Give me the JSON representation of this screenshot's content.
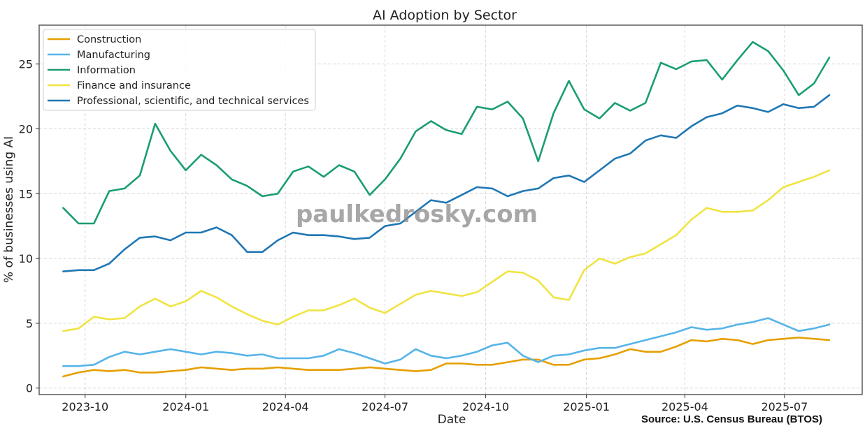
{
  "chart_data": {
    "type": "line",
    "title": "AI Adoption by Sector",
    "xlabel": "Date",
    "ylabel": "% of businesses using AI",
    "ylim": [
      -0.5,
      28
    ],
    "xlim": [
      "2023-08-20",
      "2025-09-10"
    ],
    "grid": true,
    "legend_position": "top-left",
    "x_ticks": [
      "2023-10-01",
      "2024-01-01",
      "2024-04-01",
      "2024-07-01",
      "2024-10-01",
      "2025-01-01",
      "2025-04-01",
      "2025-07-01"
    ],
    "x_tick_labels": [
      "2023-10",
      "2024-01",
      "2024-04",
      "2024-07",
      "2024-10",
      "2025-01",
      "2025-04",
      "2025-07"
    ],
    "y_ticks": [
      0,
      5,
      10,
      15,
      20,
      25
    ],
    "y_tick_labels": [
      "0",
      "5",
      "10",
      "15",
      "20",
      "25"
    ],
    "x": [
      "2023-09-11",
      "2023-09-25",
      "2023-10-09",
      "2023-10-23",
      "2023-11-06",
      "2023-11-20",
      "2023-12-04",
      "2023-12-18",
      "2024-01-01",
      "2024-01-15",
      "2024-01-29",
      "2024-02-12",
      "2024-02-26",
      "2024-03-11",
      "2024-03-25",
      "2024-04-08",
      "2024-04-22",
      "2024-05-06",
      "2024-05-20",
      "2024-06-03",
      "2024-06-17",
      "2024-07-01",
      "2024-07-15",
      "2024-07-29",
      "2024-08-12",
      "2024-08-26",
      "2024-09-09",
      "2024-09-23",
      "2024-10-07",
      "2024-10-21",
      "2024-11-04",
      "2024-11-18",
      "2024-12-02",
      "2024-12-16",
      "2024-12-30",
      "2025-01-13",
      "2025-01-27",
      "2025-02-10",
      "2025-02-24",
      "2025-03-10",
      "2025-03-24",
      "2025-04-07",
      "2025-04-21",
      "2025-05-05",
      "2025-05-19",
      "2025-06-02",
      "2025-06-16",
      "2025-06-30",
      "2025-07-14",
      "2025-07-28",
      "2025-08-11"
    ],
    "series": [
      {
        "name": "Construction",
        "color": "#E69F00",
        "values": [
          0.9,
          1.2,
          1.4,
          1.3,
          1.4,
          1.2,
          1.2,
          1.3,
          1.4,
          1.6,
          1.5,
          1.4,
          1.5,
          1.5,
          1.6,
          1.5,
          1.4,
          1.4,
          1.4,
          1.5,
          1.6,
          1.5,
          1.4,
          1.3,
          1.4,
          1.9,
          1.9,
          1.8,
          1.8,
          2.0,
          2.2,
          2.2,
          1.8,
          1.8,
          2.2,
          2.3,
          2.6,
          3.0,
          2.8,
          2.8,
          3.2,
          3.7,
          3.6,
          3.8,
          3.7,
          3.4,
          3.7,
          3.8,
          3.9,
          3.8,
          3.7
        ]
      },
      {
        "name": "Manufacturing",
        "color": "#56B4E9",
        "values": [
          1.7,
          1.7,
          1.8,
          2.4,
          2.8,
          2.6,
          2.8,
          3.0,
          2.8,
          2.6,
          2.8,
          2.7,
          2.5,
          2.6,
          2.3,
          2.3,
          2.3,
          2.5,
          3.0,
          2.7,
          2.3,
          1.9,
          2.2,
          3.0,
          2.5,
          2.3,
          2.5,
          2.8,
          3.3,
          3.5,
          2.5,
          2.0,
          2.5,
          2.6,
          2.9,
          3.1,
          3.1,
          3.4,
          3.7,
          4.0,
          4.3,
          4.7,
          4.5,
          4.6,
          4.9,
          5.1,
          5.4,
          4.9,
          4.4,
          4.6,
          4.9
        ]
      },
      {
        "name": "Information",
        "color": "#1A9E6E",
        "values": [
          13.9,
          12.7,
          12.7,
          15.2,
          15.4,
          16.4,
          20.4,
          18.3,
          16.8,
          18.0,
          17.2,
          16.1,
          15.6,
          14.8,
          15.0,
          16.7,
          17.1,
          16.3,
          17.2,
          16.7,
          14.9,
          16.1,
          17.7,
          19.8,
          20.6,
          19.9,
          19.6,
          21.7,
          21.5,
          22.1,
          20.8,
          17.5,
          21.2,
          23.7,
          21.5,
          20.8,
          22.0,
          21.4,
          22.0,
          25.1,
          24.6,
          25.2,
          25.3,
          23.8,
          25.3,
          26.7,
          26.0,
          24.5,
          22.6,
          23.5,
          25.5
        ]
      },
      {
        "name": "Finance and insurance",
        "color": "#F0E442",
        "values": [
          4.4,
          4.6,
          5.5,
          5.3,
          5.4,
          6.3,
          6.9,
          6.3,
          6.7,
          7.5,
          7.0,
          6.3,
          5.7,
          5.2,
          4.9,
          5.5,
          6.0,
          6.0,
          6.4,
          6.9,
          6.2,
          5.8,
          6.5,
          7.2,
          7.5,
          7.3,
          7.1,
          7.4,
          8.2,
          9.0,
          8.9,
          8.3,
          7.0,
          6.8,
          9.1,
          10.0,
          9.6,
          10.1,
          10.4,
          11.1,
          11.8,
          13.0,
          13.9,
          13.6,
          13.6,
          13.7,
          14.5,
          15.5,
          15.9,
          16.3,
          16.8
        ]
      },
      {
        "name": "Professional, scientific, and technical services",
        "color": "#1F77B4",
        "values": [
          9.0,
          9.1,
          9.1,
          9.6,
          10.7,
          11.6,
          11.7,
          11.4,
          12.0,
          12.0,
          12.4,
          11.8,
          10.5,
          10.5,
          11.4,
          12.0,
          11.8,
          11.8,
          11.7,
          11.5,
          11.6,
          12.5,
          12.7,
          13.6,
          14.5,
          14.3,
          14.9,
          15.5,
          15.4,
          14.8,
          15.2,
          15.4,
          16.2,
          16.4,
          15.9,
          16.8,
          17.7,
          18.1,
          19.1,
          19.5,
          19.3,
          20.2,
          20.9,
          21.2,
          21.8,
          21.6,
          21.3,
          21.9,
          21.6,
          21.7,
          22.6
        ]
      }
    ],
    "annotations": [
      "paulkedrosky.com",
      "Source: U.S. Census Bureau (BTOS)"
    ]
  },
  "watermark": "paulkedrosky.com",
  "source_note": "Source: U.S. Census Bureau (BTOS)"
}
